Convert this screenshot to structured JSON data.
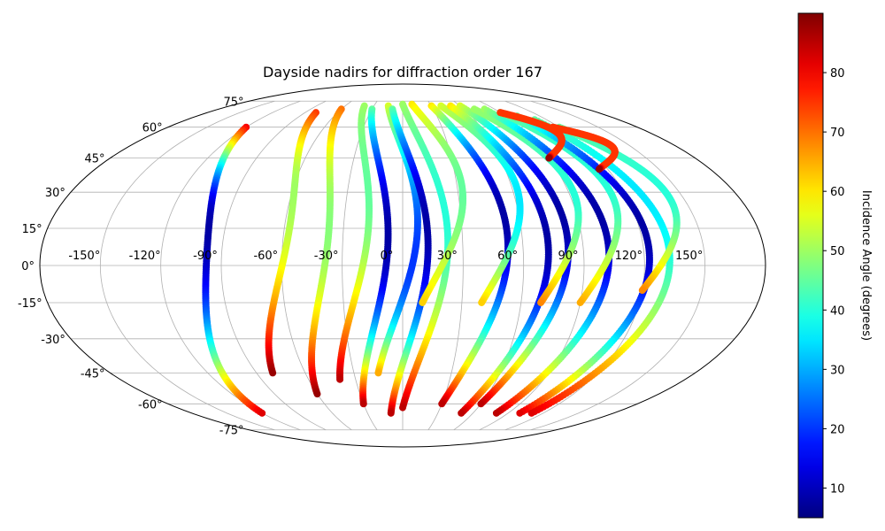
{
  "chart_data": {
    "type": "scatter",
    "projection": "mollweide",
    "title": "Dayside nadirs for diffraction order 167",
    "xlabel": "",
    "ylabel": "",
    "lon_ticks": [
      -150,
      -120,
      -90,
      -60,
      -30,
      0,
      30,
      60,
      90,
      120,
      150
    ],
    "lon_tick_labels": [
      "-150°",
      "-120°",
      "-90°",
      "-60°",
      "-30°",
      "0°",
      "30°",
      "60°",
      "90°",
      "120°",
      "150°"
    ],
    "lat_ticks": [
      75,
      60,
      45,
      30,
      15,
      0,
      -15,
      -30,
      -45,
      -60,
      -75
    ],
    "lat_tick_labels": [
      "75°",
      "60°",
      "45°",
      "30°",
      "15°",
      "0°",
      "-15°",
      "-30°",
      "-45°",
      "-60°",
      "-75°"
    ],
    "grid": true,
    "colormap": "jet",
    "colorbar": {
      "label": "Incidence Angle (degrees)",
      "range": [
        5,
        90
      ],
      "ticks": [
        10,
        20,
        30,
        40,
        50,
        60,
        70,
        80
      ],
      "tick_labels": [
        "10",
        "20",
        "30",
        "40",
        "50",
        "60",
        "70",
        "80"
      ],
      "placement": "right"
    },
    "tracks": [
      {
        "lon_start": -120,
        "lat_start": 60,
        "lat_end": -65,
        "inc_start": 80,
        "inc_end": 82,
        "inc_min": 8,
        "lat_min": 15
      },
      {
        "lon_start": -80,
        "lat_start": 68,
        "lat_end": -45,
        "inc_start": 75,
        "inc_end": 88,
        "inc_min": 50,
        "lat_min": 30
      },
      {
        "lon_start": -60,
        "lat_start": 70,
        "lat_end": -55,
        "inc_start": 70,
        "inc_end": 88,
        "inc_min": 48,
        "lat_min": 15
      },
      {
        "lon_start": -40,
        "lat_start": 72,
        "lat_end": -48,
        "inc_start": 50,
        "inc_end": 85,
        "inc_min": 45,
        "lat_min": 30
      },
      {
        "lon_start": -30,
        "lat_start": 70,
        "lat_end": -60,
        "inc_start": 45,
        "inc_end": 85,
        "inc_min": 8,
        "lat_min": 10
      },
      {
        "lon_start": -15,
        "lat_start": 72,
        "lat_end": -45,
        "inc_start": 55,
        "inc_end": 65,
        "inc_min": 20,
        "lat_min": 0
      },
      {
        "lon_start": -10,
        "lat_start": 70,
        "lat_end": -65,
        "inc_start": 45,
        "inc_end": 85,
        "inc_min": 8,
        "lat_min": 15
      },
      {
        "lon_start": 0,
        "lat_start": 73,
        "lat_end": -62,
        "inc_start": 50,
        "inc_end": 85,
        "inc_min": 40,
        "lat_min": 20
      },
      {
        "lon_start": 10,
        "lat_start": 73,
        "lat_end": -15,
        "inc_start": 60,
        "inc_end": 62,
        "inc_min": 45,
        "lat_min": 30
      },
      {
        "lon_start": 30,
        "lat_start": 72,
        "lat_end": -60,
        "inc_start": 60,
        "inc_end": 85,
        "inc_min": 8,
        "lat_min": 20
      },
      {
        "lon_start": 40,
        "lat_start": 72,
        "lat_end": -15,
        "inc_start": 55,
        "inc_end": 62,
        "inc_min": 35,
        "lat_min": 25
      },
      {
        "lon_start": 50,
        "lat_start": 72,
        "lat_end": -65,
        "inc_start": 60,
        "inc_end": 85,
        "inc_min": 8,
        "lat_min": 10
      },
      {
        "lon_start": 60,
        "lat_start": 72,
        "lat_end": -60,
        "inc_start": 55,
        "inc_end": 85,
        "inc_min": 8,
        "lat_min": 20
      },
      {
        "lon_start": 70,
        "lat_start": 70,
        "lat_end": -15,
        "inc_start": 50,
        "inc_end": 68,
        "inc_min": 40,
        "lat_min": 30
      },
      {
        "lon_start": 80,
        "lat_start": 70,
        "lat_end": -65,
        "inc_start": 50,
        "inc_end": 85,
        "inc_min": 8,
        "lat_min": 20
      },
      {
        "lon_start": 90,
        "lat_start": 68,
        "lat_end": -15,
        "inc_start": 45,
        "inc_end": 65,
        "inc_min": 40,
        "lat_min": 35
      },
      {
        "lon_start": 100,
        "lat_start": 66,
        "lat_end": -65,
        "inc_start": 45,
        "inc_end": 82,
        "inc_min": 8,
        "lat_min": 15
      },
      {
        "lon_start": 110,
        "lat_start": 64,
        "lat_end": -65,
        "inc_start": 45,
        "inc_end": 82,
        "inc_min": 35,
        "lat_min": 30
      },
      {
        "lon_start": 120,
        "lat_start": 60,
        "lat_end": -10,
        "inc_start": 45,
        "inc_end": 68,
        "inc_min": 40,
        "lat_min": 30
      },
      {
        "lon_start": 90,
        "lat_start": 68,
        "lat_end": 45,
        "inc_start": 75,
        "inc_end": 88,
        "inc_min": 75,
        "lat_min": 45
      },
      {
        "lon_start": 115,
        "lat_start": 60,
        "lat_end": 40,
        "inc_start": 75,
        "inc_end": 88,
        "inc_min": 75,
        "lat_min": 40
      }
    ]
  }
}
